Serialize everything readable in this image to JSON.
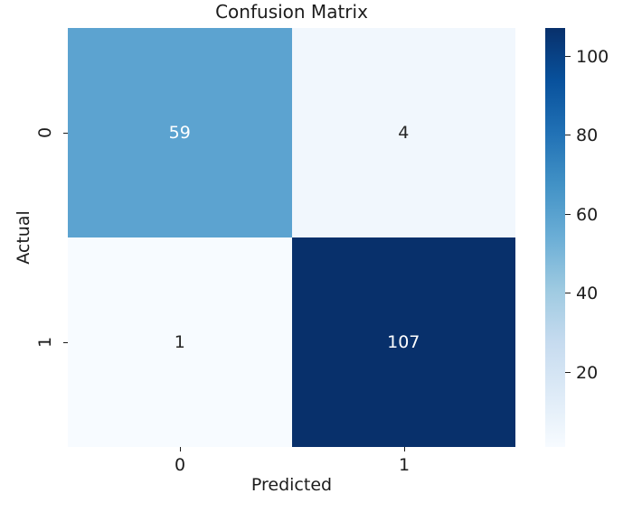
{
  "chart_data": {
    "type": "heatmap",
    "title": "Confusion Matrix",
    "xlabel": "Predicted",
    "ylabel": "Actual",
    "x_tick_labels": [
      "0",
      "1"
    ],
    "y_tick_labels": [
      "0",
      "1"
    ],
    "matrix": [
      [
        59,
        4
      ],
      [
        1,
        107
      ]
    ],
    "cells": [
      {
        "row": "0",
        "col": "0",
        "value": "59",
        "color": "#5ca3d0",
        "text_color": "#ffffff"
      },
      {
        "row": "0",
        "col": "1",
        "value": "4",
        "color": "#f1f7fd",
        "text_color": "#262626"
      },
      {
        "row": "1",
        "col": "0",
        "value": "1",
        "color": "#f7fbff",
        "text_color": "#262626"
      },
      {
        "row": "1",
        "col": "1",
        "value": "107",
        "color": "#08306b",
        "text_color": "#ffffff"
      }
    ],
    "colormap": "Blues",
    "colormap_stops": [
      "#f7fbff",
      "#deebf7",
      "#c6dbef",
      "#9ecae1",
      "#6baed6",
      "#4292c6",
      "#2171b5",
      "#08519c",
      "#08306b"
    ],
    "vmin": 1,
    "vmax": 107,
    "colorbar_ticks": [
      "20",
      "40",
      "60",
      "80",
      "100"
    ],
    "colorbar_position": "right",
    "grid": false,
    "background_color": "#ffffff",
    "text_color": "#1c1c1c"
  }
}
